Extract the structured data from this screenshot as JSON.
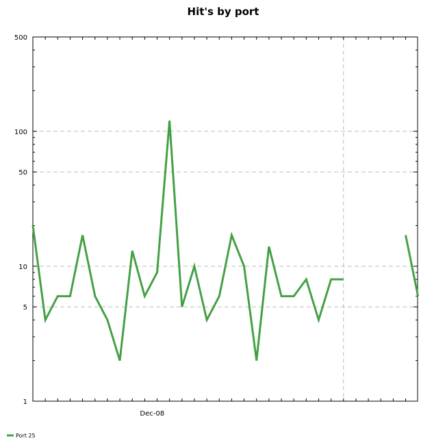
{
  "chart_data": {
    "type": "line",
    "title": "Hit's by port",
    "xlabel": "",
    "ylabel": "",
    "yscale": "log",
    "ylim": [
      1,
      500
    ],
    "y_ticks": [
      1,
      5,
      10,
      50,
      100,
      500
    ],
    "y_tick_labels": [
      "1",
      "5",
      "10",
      "50",
      "100",
      "500"
    ],
    "x_tick_labels": [
      "Dec-08"
    ],
    "grid": true,
    "legend_position": "bottom-left",
    "colors": {
      "series": "#44a044",
      "grid": "#bbbbbb",
      "axis": "#000000"
    },
    "series": [
      {
        "name": "Port 25",
        "values": [
          20,
          4,
          6,
          6,
          17,
          6,
          4,
          2,
          13,
          6,
          9,
          120,
          5,
          10,
          4,
          6,
          17,
          10,
          2,
          14,
          6,
          6,
          8,
          4,
          8,
          8,
          null,
          null,
          null,
          null,
          17,
          6
        ]
      }
    ]
  }
}
